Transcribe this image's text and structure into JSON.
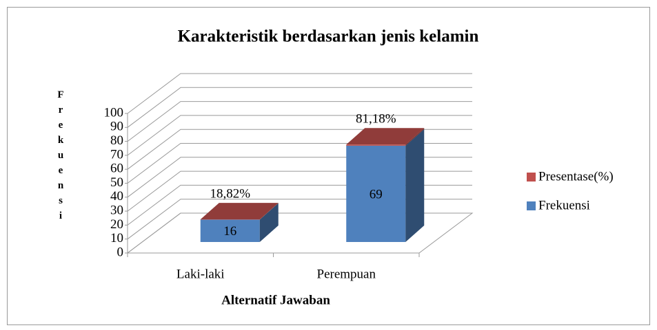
{
  "chart_data": {
    "type": "bar3d_stacked",
    "title": "Karakteristik berdasarkan jenis kelamin",
    "x_label": "Alternatif Jawaban",
    "y_label": "Frekuensi",
    "categories": [
      "Laki-laki",
      "Perempuan"
    ],
    "series": [
      {
        "name": "Frekuensi",
        "color": "#4f81bd",
        "values": [
          16,
          69
        ]
      },
      {
        "name": "Presentase(%)",
        "color": "#c0504d",
        "values": [
          0.1882,
          0.8118
        ],
        "value_labels": [
          "18,82%",
          "81,18%"
        ]
      }
    ],
    "ylim": [
      0,
      100
    ],
    "yticks": [
      0,
      10,
      20,
      30,
      40,
      50,
      60,
      70,
      80,
      90,
      100
    ],
    "grid": true,
    "legend": "right"
  }
}
